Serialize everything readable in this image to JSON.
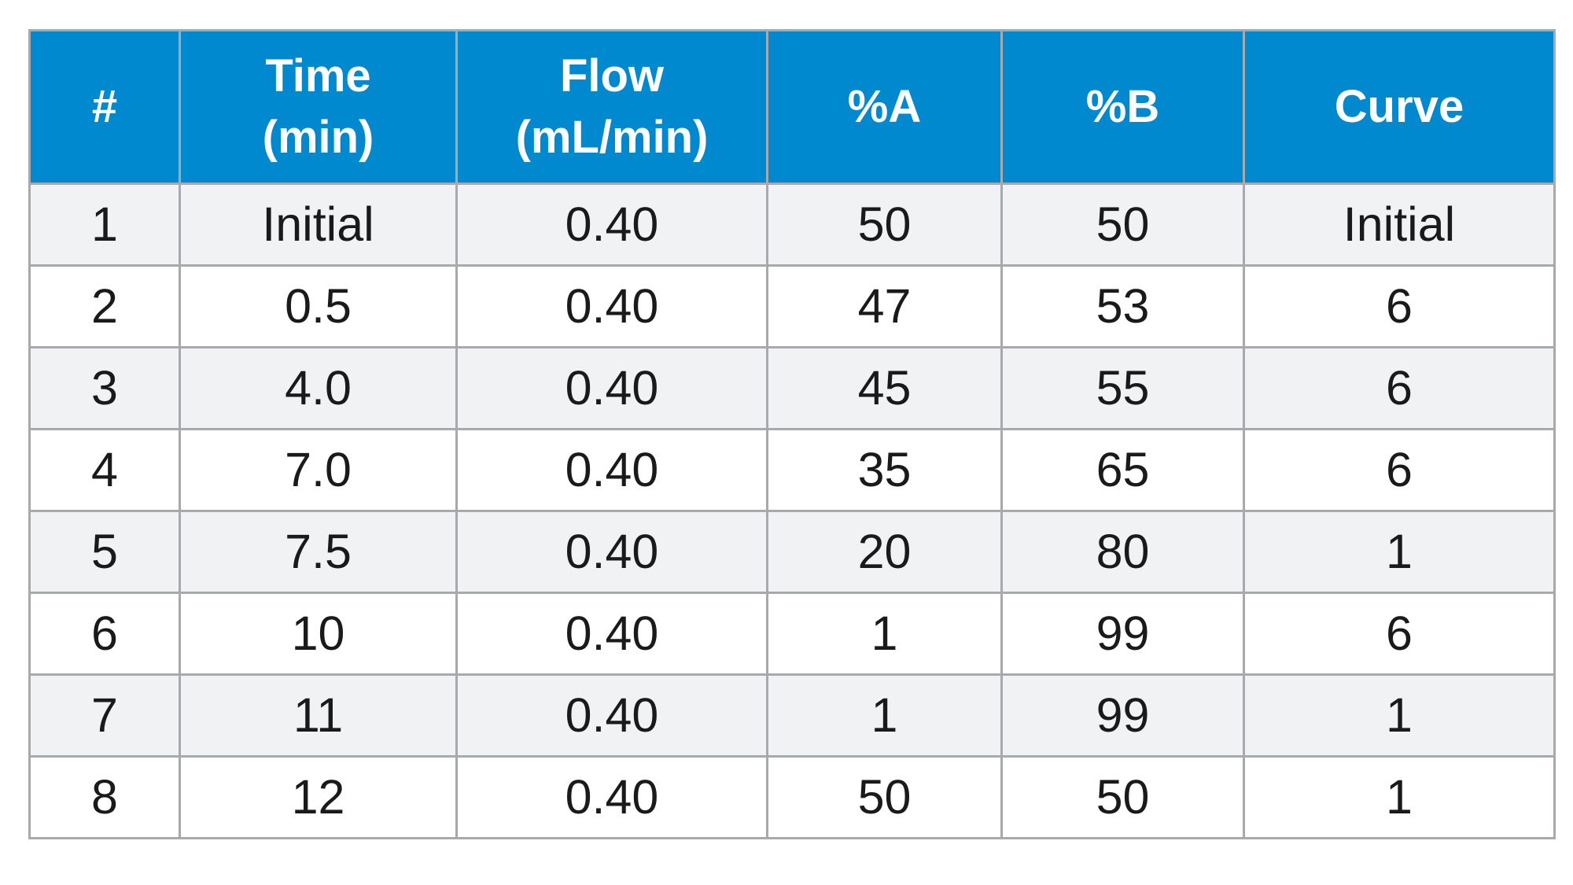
{
  "table": {
    "headers": [
      {
        "line1": "#",
        "line2": ""
      },
      {
        "line1": "Time",
        "line2": "(min)"
      },
      {
        "line1": "Flow",
        "line2": "(mL/min)"
      },
      {
        "line1": "%A",
        "line2": ""
      },
      {
        "line1": "%B",
        "line2": ""
      },
      {
        "line1": "Curve",
        "line2": ""
      }
    ],
    "rows": [
      [
        "1",
        "Initial",
        "0.40",
        "50",
        "50",
        "Initial"
      ],
      [
        "2",
        "0.5",
        "0.40",
        "47",
        "53",
        "6"
      ],
      [
        "3",
        "4.0",
        "0.40",
        "45",
        "55",
        "6"
      ],
      [
        "4",
        "7.0",
        "0.40",
        "35",
        "65",
        "6"
      ],
      [
        "5",
        "7.5",
        "0.40",
        "20",
        "80",
        "1"
      ],
      [
        "6",
        "10",
        "0.40",
        "1",
        "99",
        "6"
      ],
      [
        "7",
        "11",
        "0.40",
        "1",
        "99",
        "1"
      ],
      [
        "8",
        "12",
        "0.40",
        "50",
        "50",
        "1"
      ]
    ]
  },
  "colors": {
    "header_bg": "#0089cf",
    "header_text": "#ffffff",
    "row_alt_bg": "#f1f2f4",
    "row_bg": "#ffffff",
    "grid": "#a7a9ac"
  }
}
